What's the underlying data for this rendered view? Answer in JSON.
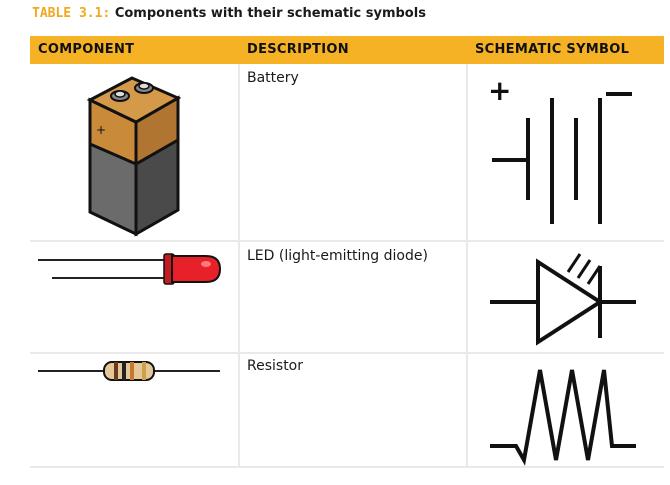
{
  "caption": {
    "label": "TABLE 3.1:",
    "text": "Components with their schematic symbols"
  },
  "table": {
    "headers": [
      "COMPONENT",
      "DESCRIPTION",
      "SCHEMATIC SYMBOL"
    ],
    "rows": [
      {
        "description": "Battery",
        "component_icon": "battery-illustration",
        "symbol_icon": "battery-schematic-symbol"
      },
      {
        "description": "LED (light-emitting diode)",
        "component_icon": "led-illustration",
        "symbol_icon": "led-schematic-symbol"
      },
      {
        "description": "Resistor",
        "component_icon": "resistor-illustration",
        "symbol_icon": "resistor-schematic-symbol"
      }
    ]
  },
  "symbols": {
    "battery_plus": "+",
    "battery_minus": "−",
    "battery_terminal_plus": "+"
  },
  "colors": {
    "header_bg": "#f5b224",
    "caption_label": "#f2a81d",
    "grid_line": "#e9e9e9",
    "battery_top": "#c98a3a",
    "battery_body": "#5a5a5a",
    "led_red": "#e8202a",
    "resistor_body": "#e6c79a"
  }
}
